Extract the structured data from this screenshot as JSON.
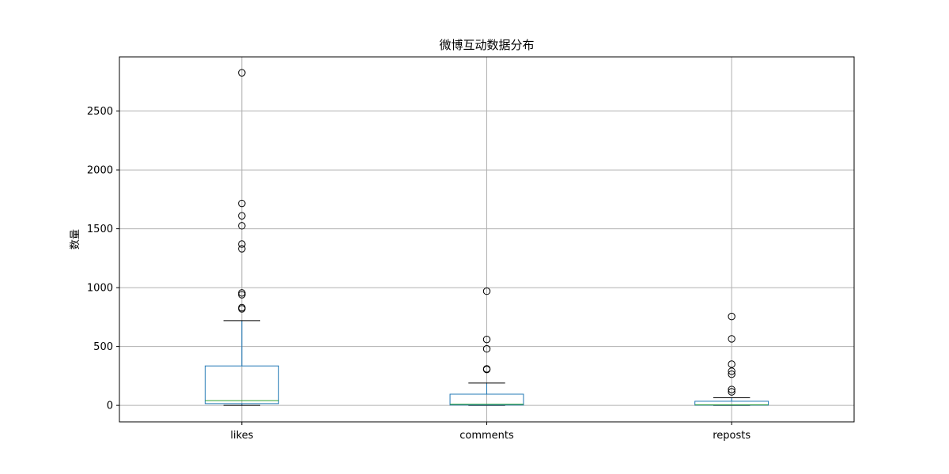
{
  "chart_data": {
    "type": "box",
    "title": "微博互动数据分布",
    "xlabel": "",
    "ylabel": "数量",
    "ylim": [
      -140,
      2960
    ],
    "yticks": [
      0,
      500,
      1000,
      1500,
      2000,
      2500
    ],
    "grid": true,
    "categories": [
      "likes",
      "comments",
      "reposts"
    ],
    "boxes": [
      {
        "name": "likes",
        "whisker_low": 0,
        "q1": 15,
        "median": 40,
        "q3": 335,
        "whisker_high": 720,
        "outliers": [
          2825,
          1715,
          1610,
          1525,
          1370,
          1330,
          955,
          940,
          830,
          820
        ]
      },
      {
        "name": "comments",
        "whisker_low": 0,
        "q1": 3,
        "median": 10,
        "q3": 95,
        "whisker_high": 190,
        "outliers": [
          970,
          560,
          480,
          310,
          305
        ]
      },
      {
        "name": "reposts",
        "whisker_low": 0,
        "q1": 2,
        "median": 5,
        "q3": 35,
        "whisker_high": 65,
        "outliers": [
          755,
          565,
          350,
          290,
          265,
          135,
          115
        ]
      }
    ],
    "colors": {
      "box": "#1f77b4",
      "median": "#2ca02c",
      "whisker_cap": "#000000",
      "outlier": "#000000",
      "grid": "#b0b0b0"
    }
  }
}
